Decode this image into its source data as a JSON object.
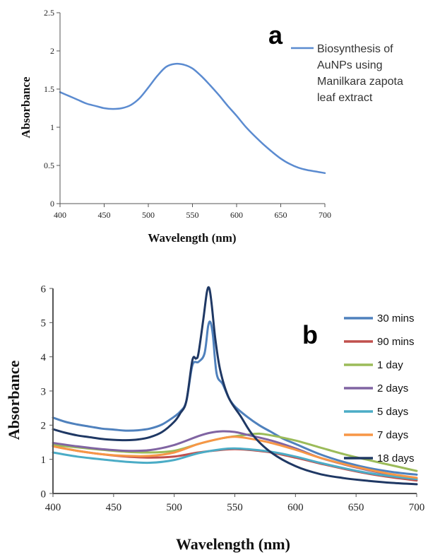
{
  "chart_data": [
    {
      "panel_label": "a",
      "type": "line",
      "xlabel": "Wavelength (nm)",
      "ylabel": "Absorbance",
      "xlim": [
        400,
        700
      ],
      "ylim": [
        0,
        2.5
      ],
      "xticks": [
        400,
        450,
        500,
        550,
        600,
        650,
        700
      ],
      "yticks": [
        0,
        0.5,
        1,
        1.5,
        2,
        2.5
      ],
      "xtick_labels": [
        "400",
        "450",
        "500",
        "550",
        "600",
        "650",
        "700"
      ],
      "ytick_labels": [
        "0",
        "0.5",
        "1",
        "1.5",
        "2",
        "2.5"
      ],
      "grid": false,
      "legend_position": "top-right",
      "series": [
        {
          "name_lines": [
            "Biosynthesis of",
            "AuNPs using",
            "Manilkara zapota",
            "leaf extract"
          ],
          "color": "#5B8BD0",
          "x": [
            400,
            410,
            420,
            430,
            440,
            450,
            460,
            470,
            480,
            490,
            500,
            510,
            520,
            530,
            540,
            550,
            560,
            570,
            580,
            590,
            600,
            610,
            620,
            630,
            640,
            650,
            660,
            670,
            680,
            690,
            700
          ],
          "y": [
            1.46,
            1.41,
            1.36,
            1.31,
            1.28,
            1.25,
            1.24,
            1.25,
            1.29,
            1.38,
            1.52,
            1.67,
            1.79,
            1.83,
            1.82,
            1.77,
            1.67,
            1.55,
            1.42,
            1.28,
            1.15,
            1.01,
            0.89,
            0.78,
            0.68,
            0.59,
            0.52,
            0.47,
            0.44,
            0.42,
            0.4
          ]
        }
      ]
    },
    {
      "panel_label": "b",
      "type": "line",
      "xlabel": "Wavelength (nm)",
      "ylabel": "Absorbance",
      "xlim": [
        400,
        700
      ],
      "ylim": [
        0,
        6
      ],
      "xticks": [
        400,
        450,
        500,
        550,
        600,
        650,
        700
      ],
      "yticks": [
        0,
        1,
        2,
        3,
        4,
        5,
        6
      ],
      "xtick_labels": [
        "400",
        "450",
        "500",
        "550",
        "600",
        "650",
        "700"
      ],
      "ytick_labels": [
        "0",
        "1",
        "2",
        "3",
        "4",
        "5",
        "6"
      ],
      "grid": false,
      "legend_position": "top-right",
      "series": [
        {
          "name": "30 mins",
          "color": "#4F81BD",
          "x": [
            400,
            410,
            420,
            430,
            440,
            450,
            460,
            470,
            480,
            490,
            500,
            505,
            510,
            515,
            520,
            525,
            528,
            530,
            532,
            535,
            540,
            545,
            550,
            560,
            570,
            580,
            590,
            600,
            620,
            640,
            660,
            680,
            700
          ],
          "y": [
            2.22,
            2.1,
            2.02,
            1.96,
            1.9,
            1.87,
            1.84,
            1.85,
            1.9,
            2.02,
            2.25,
            2.4,
            2.7,
            3.75,
            3.85,
            4.1,
            4.9,
            5.0,
            4.6,
            3.5,
            3.2,
            2.8,
            2.55,
            2.25,
            2.0,
            1.8,
            1.6,
            1.45,
            1.15,
            0.92,
            0.75,
            0.63,
            0.55
          ]
        },
        {
          "name": "90 mins",
          "color": "#C0504D",
          "x": [
            400,
            420,
            440,
            460,
            480,
            500,
            520,
            540,
            550,
            560,
            580,
            600,
            620,
            640,
            660,
            680,
            700
          ],
          "y": [
            1.38,
            1.25,
            1.15,
            1.08,
            1.05,
            1.08,
            1.2,
            1.28,
            1.3,
            1.28,
            1.2,
            1.05,
            0.88,
            0.72,
            0.58,
            0.47,
            0.38
          ]
        },
        {
          "name": "1 day",
          "color": "#9BBB59",
          "x": [
            400,
            420,
            440,
            460,
            480,
            500,
            520,
            540,
            560,
            570,
            580,
            600,
            620,
            640,
            660,
            680,
            700
          ],
          "y": [
            1.42,
            1.35,
            1.28,
            1.22,
            1.2,
            1.25,
            1.45,
            1.62,
            1.72,
            1.75,
            1.7,
            1.55,
            1.35,
            1.15,
            0.98,
            0.82,
            0.66
          ]
        },
        {
          "name": "2 days",
          "color": "#8064A2",
          "x": [
            400,
            420,
            440,
            460,
            480,
            500,
            520,
            530,
            540,
            550,
            560,
            580,
            600,
            620,
            640,
            660,
            680,
            700
          ],
          "y": [
            1.48,
            1.38,
            1.3,
            1.25,
            1.27,
            1.42,
            1.68,
            1.78,
            1.82,
            1.8,
            1.72,
            1.55,
            1.32,
            1.05,
            0.85,
            0.68,
            0.55,
            0.45
          ]
        },
        {
          "name": "5 days",
          "color": "#4BACC6",
          "x": [
            400,
            420,
            440,
            460,
            480,
            500,
            520,
            540,
            550,
            560,
            580,
            600,
            620,
            640,
            660,
            680,
            700
          ],
          "y": [
            1.2,
            1.08,
            1.0,
            0.93,
            0.9,
            0.98,
            1.18,
            1.3,
            1.32,
            1.3,
            1.22,
            1.08,
            0.9,
            0.74,
            0.6,
            0.5,
            0.42
          ]
        },
        {
          "name": "7 days",
          "color": "#F79646",
          "x": [
            400,
            420,
            440,
            460,
            480,
            500,
            520,
            540,
            550,
            560,
            580,
            600,
            620,
            640,
            660,
            680,
            700
          ],
          "y": [
            1.38,
            1.25,
            1.15,
            1.1,
            1.1,
            1.2,
            1.45,
            1.62,
            1.66,
            1.62,
            1.48,
            1.28,
            1.05,
            0.86,
            0.7,
            0.56,
            0.46
          ]
        },
        {
          "name": "18 days",
          "color": "#1F3864",
          "x": [
            400,
            410,
            420,
            430,
            440,
            450,
            460,
            470,
            480,
            490,
            500,
            505,
            510,
            515,
            518,
            520,
            524,
            527,
            529,
            531,
            534,
            538,
            545,
            555,
            565,
            580,
            600,
            620,
            640,
            660,
            680,
            700
          ],
          "y": [
            1.88,
            1.78,
            1.7,
            1.65,
            1.6,
            1.57,
            1.56,
            1.58,
            1.65,
            1.8,
            2.1,
            2.35,
            2.7,
            3.9,
            3.95,
            4.1,
            5.1,
            5.9,
            6.0,
            5.5,
            4.5,
            3.6,
            2.8,
            2.25,
            1.7,
            1.2,
            0.8,
            0.57,
            0.45,
            0.37,
            0.31,
            0.27
          ]
        }
      ]
    }
  ]
}
